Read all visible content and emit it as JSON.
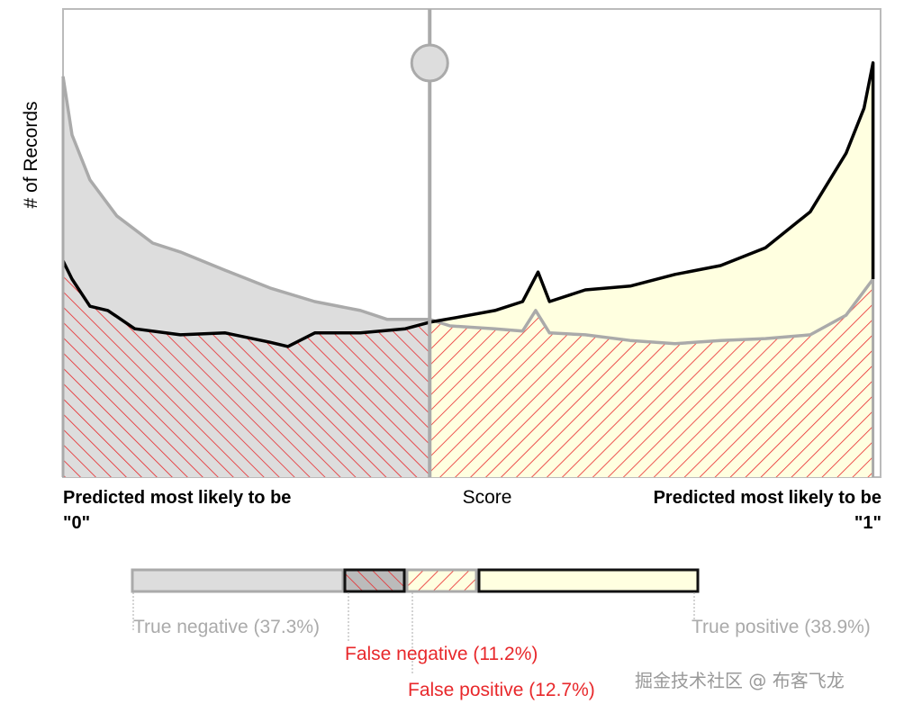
{
  "chart_data": {
    "type": "area",
    "ylabel": "# of Records",
    "xlabel": "Score",
    "left_label": [
      "Predicted most likely to be",
      "\"0\""
    ],
    "right_label": [
      "Predicted most likely to be",
      "\"1\""
    ],
    "xlim": [
      0,
      1
    ],
    "ylim": [
      0,
      100
    ],
    "grid": false,
    "threshold": 0.45,
    "colors": {
      "gray_fill": "#dddddd",
      "gray_line": "#aaaaaa",
      "black_line": "#000000",
      "cream_fill": "#ffffe0",
      "hatch": "#e8282b"
    },
    "series": [
      {
        "points": [
          [
            0,
            85.6
          ],
          [
            0.011,
            73.1
          ],
          [
            0.033,
            63.5
          ],
          [
            0.066,
            55.8
          ],
          [
            0.11,
            50.0
          ],
          [
            0.144,
            48.1
          ],
          [
            0.199,
            44.2
          ],
          [
            0.254,
            40.4
          ],
          [
            0.309,
            37.5
          ],
          [
            0.365,
            35.6
          ],
          [
            0.398,
            33.7
          ],
          [
            0.45,
            33.7
          ],
          [
            0.475,
            32.3
          ],
          [
            0.53,
            31.7
          ],
          [
            0.564,
            31.2
          ],
          [
            0.58,
            35.6
          ],
          [
            0.597,
            30.8
          ],
          [
            0.641,
            30.4
          ],
          [
            0.696,
            29.2
          ],
          [
            0.751,
            28.5
          ],
          [
            0.807,
            29.2
          ],
          [
            0.862,
            29.6
          ],
          [
            0.917,
            30.4
          ],
          [
            0.961,
            34.6
          ],
          [
            0.994,
            42.3
          ]
        ]
      },
      {
        "points": [
          [
            0,
            46.2
          ],
          [
            0.011,
            42.3
          ],
          [
            0.033,
            36.5
          ],
          [
            0.055,
            35.6
          ],
          [
            0.088,
            31.7
          ],
          [
            0.144,
            30.4
          ],
          [
            0.199,
            30.8
          ],
          [
            0.254,
            28.8
          ],
          [
            0.276,
            27.9
          ],
          [
            0.309,
            30.8
          ],
          [
            0.365,
            30.8
          ],
          [
            0.42,
            31.7
          ],
          [
            0.45,
            33.1
          ],
          [
            0.486,
            34.2
          ],
          [
            0.53,
            35.6
          ],
          [
            0.564,
            37.5
          ],
          [
            0.583,
            43.8
          ],
          [
            0.597,
            37.5
          ],
          [
            0.641,
            40.0
          ],
          [
            0.696,
            40.8
          ],
          [
            0.751,
            43.3
          ],
          [
            0.807,
            45.2
          ],
          [
            0.862,
            49.0
          ],
          [
            0.917,
            56.7
          ],
          [
            0.961,
            69.2
          ],
          [
            0.983,
            78.8
          ],
          [
            0.994,
            88.5
          ]
        ]
      }
    ]
  },
  "legend": {
    "items": [
      {
        "label": "True negative (37.3%)",
        "value": 37.3,
        "color": "#aaaaaa"
      },
      {
        "label": "False negative (11.2%)",
        "value": 11.2,
        "color": "#e8282b"
      },
      {
        "label": "False positive (12.7%)",
        "value": 12.7,
        "color": "#e8282b"
      },
      {
        "label": "True positive (38.9%)",
        "value": 38.9,
        "color": "#aaaaaa"
      }
    ]
  },
  "watermark": "掘金技术社区 @ 布客飞龙"
}
